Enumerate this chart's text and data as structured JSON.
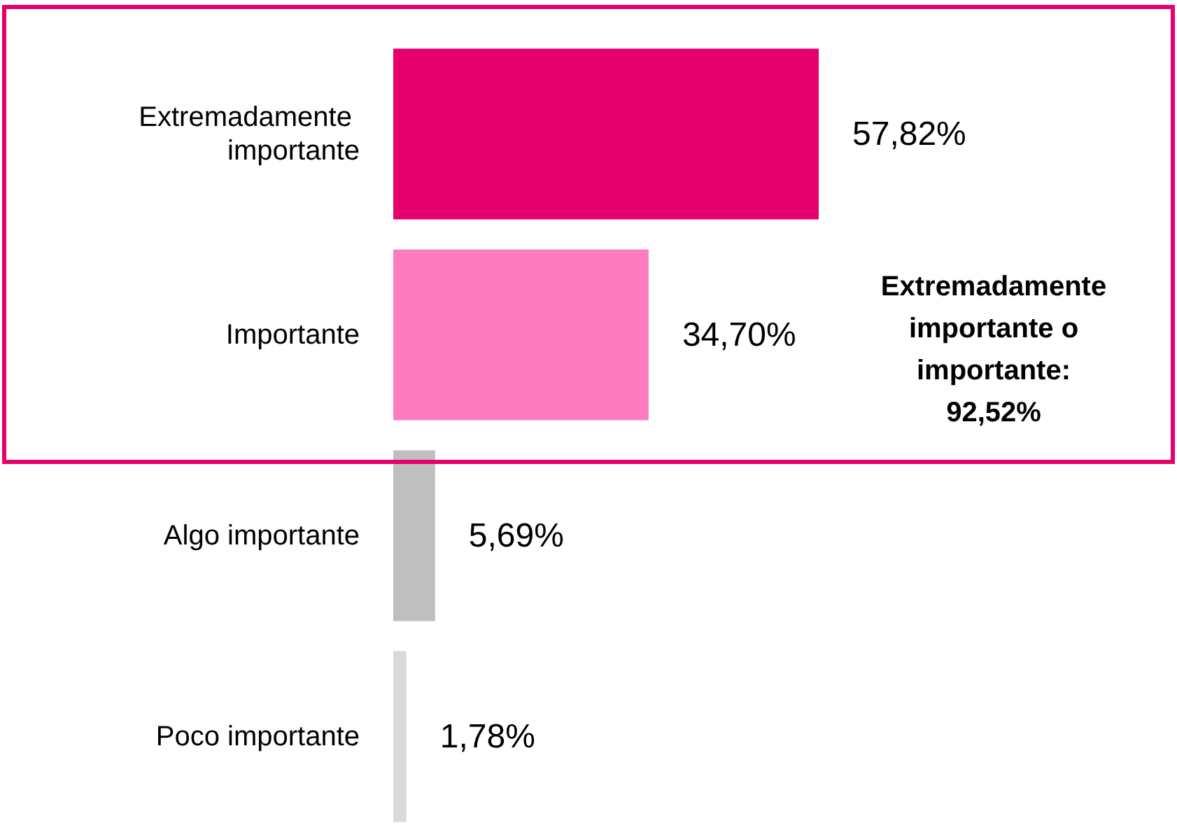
{
  "chart_data": {
    "type": "bar",
    "orientation": "horizontal",
    "categories": [
      "Extremadamente importante",
      "Importante",
      "Algo importante",
      "Poco importante"
    ],
    "values": [
      57.82,
      34.7,
      5.69,
      1.78
    ],
    "colors": [
      "#e6006e",
      "#ff7bbf",
      "#bfbfbf",
      "#d9d9d9"
    ],
    "value_labels": [
      "57,82%",
      "34,70%",
      "5,69%",
      "1,78%"
    ],
    "annotations": [
      "Extremadamente importante o importante: 92,52%"
    ]
  }
}
